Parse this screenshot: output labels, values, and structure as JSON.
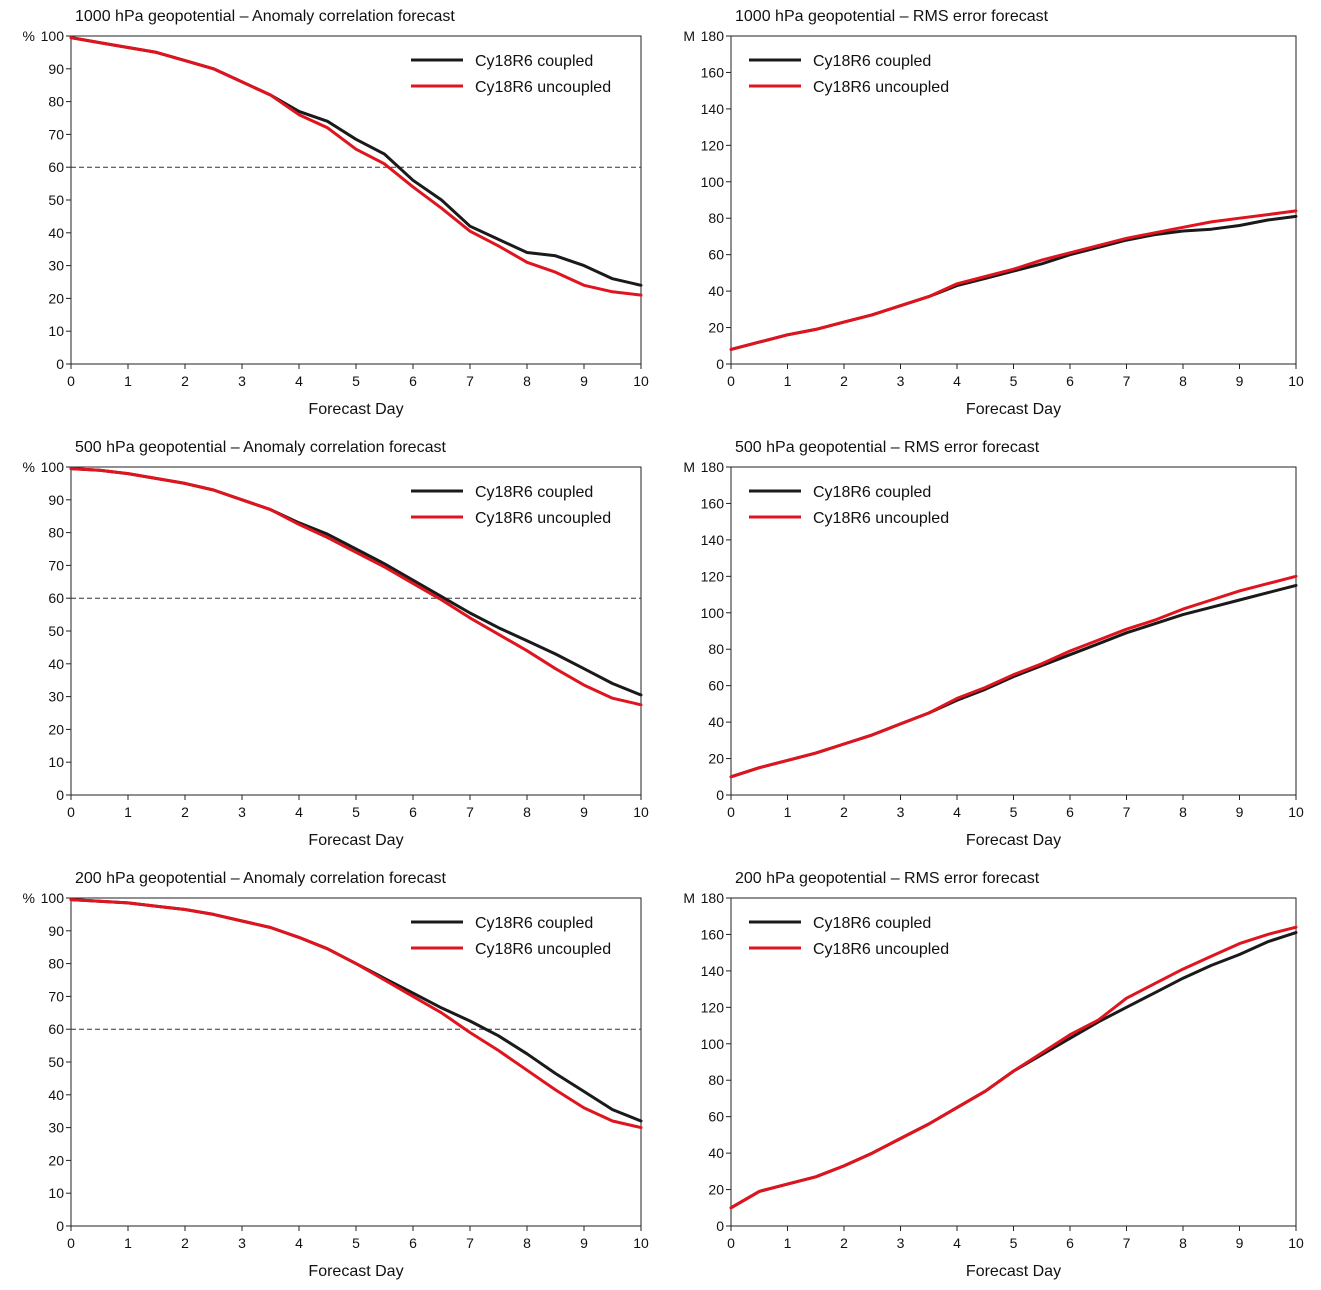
{
  "chart_data": [
    {
      "type": "line",
      "title": "1000 hPa geopotential – Anomaly correlation forecast",
      "xlabel": "Forecast Day",
      "yunit": "%",
      "xlim": [
        0,
        10
      ],
      "ylim": [
        0,
        100
      ],
      "xticks": [
        0,
        1,
        2,
        3,
        4,
        5,
        6,
        7,
        8,
        9,
        10
      ],
      "yticks": [
        0,
        10,
        20,
        30,
        40,
        50,
        60,
        70,
        80,
        90,
        100
      ],
      "reference_line": 60,
      "legend": "top-right",
      "x": [
        0,
        0.5,
        1,
        1.5,
        2,
        2.5,
        3,
        3.5,
        4,
        4.5,
        5,
        5.5,
        6,
        6.5,
        7,
        7.5,
        8,
        8.5,
        9,
        9.5,
        10
      ],
      "series": [
        {
          "name": "Cy18R6 coupled",
          "color": "#1a1a1a",
          "values": [
            99.5,
            98,
            96.5,
            95,
            92.5,
            90,
            86,
            82,
            77,
            74,
            68.5,
            64,
            56,
            50,
            42,
            38,
            34,
            33,
            30,
            26,
            24
          ]
        },
        {
          "name": "Cy18R6 uncoupled",
          "color": "#e0141e",
          "values": [
            99.5,
            98,
            96.5,
            95,
            92.5,
            90,
            86,
            82,
            76,
            72,
            65.5,
            61,
            54,
            47.5,
            40.5,
            36,
            31,
            28,
            24,
            22,
            21
          ]
        }
      ]
    },
    {
      "type": "line",
      "title": "1000 hPa geopotential – RMS error forecast",
      "xlabel": "Forecast Day",
      "yunit": "M",
      "xlim": [
        0,
        10
      ],
      "ylim": [
        0,
        180
      ],
      "xticks": [
        0,
        1,
        2,
        3,
        4,
        5,
        6,
        7,
        8,
        9,
        10
      ],
      "yticks": [
        0,
        20,
        40,
        60,
        80,
        100,
        120,
        140,
        160,
        180
      ],
      "legend": "top-left",
      "x": [
        0,
        0.5,
        1,
        1.5,
        2,
        2.5,
        3,
        3.5,
        4,
        4.5,
        5,
        5.5,
        6,
        6.5,
        7,
        7.5,
        8,
        8.5,
        9,
        9.5,
        10
      ],
      "series": [
        {
          "name": "Cy18R6 coupled",
          "color": "#1a1a1a",
          "values": [
            8,
            12,
            16,
            19,
            23,
            27,
            32,
            37,
            43,
            47,
            51,
            55,
            60,
            64,
            68,
            71,
            73,
            74,
            76,
            79,
            81
          ]
        },
        {
          "name": "Cy18R6 uncoupled",
          "color": "#e0141e",
          "values": [
            8,
            12,
            16,
            19,
            23,
            27,
            32,
            37,
            44,
            48,
            52,
            57,
            61,
            65,
            69,
            72,
            75,
            78,
            80,
            82,
            84
          ]
        }
      ]
    },
    {
      "type": "line",
      "title": "500 hPa geopotential – Anomaly correlation forecast",
      "xlabel": "Forecast Day",
      "yunit": "%",
      "xlim": [
        0,
        10
      ],
      "ylim": [
        0,
        100
      ],
      "xticks": [
        0,
        1,
        2,
        3,
        4,
        5,
        6,
        7,
        8,
        9,
        10
      ],
      "yticks": [
        0,
        10,
        20,
        30,
        40,
        50,
        60,
        70,
        80,
        90,
        100
      ],
      "reference_line": 60,
      "legend": "top-right",
      "x": [
        0,
        0.5,
        1,
        1.5,
        2,
        2.5,
        3,
        3.5,
        4,
        4.5,
        5,
        5.5,
        6,
        6.5,
        7,
        7.5,
        8,
        8.5,
        9,
        9.5,
        10
      ],
      "series": [
        {
          "name": "Cy18R6 coupled",
          "color": "#1a1a1a",
          "values": [
            99.5,
            99,
            98,
            96.5,
            95,
            93,
            90,
            87,
            83,
            79.5,
            75,
            70.5,
            65.5,
            60.5,
            55.5,
            51,
            47,
            43,
            38.5,
            34,
            30.5
          ]
        },
        {
          "name": "Cy18R6 uncoupled",
          "color": "#e0141e",
          "values": [
            99.5,
            99,
            98,
            96.5,
            95,
            93,
            90,
            87,
            82.5,
            78.5,
            74,
            69.5,
            64.5,
            59.5,
            54,
            49,
            44,
            38.5,
            33.5,
            29.5,
            27.5
          ]
        }
      ]
    },
    {
      "type": "line",
      "title": "500 hPa geopotential – RMS error forecast",
      "xlabel": "Forecast Day",
      "yunit": "M",
      "xlim": [
        0,
        10
      ],
      "ylim": [
        0,
        180
      ],
      "xticks": [
        0,
        1,
        2,
        3,
        4,
        5,
        6,
        7,
        8,
        9,
        10
      ],
      "yticks": [
        0,
        20,
        40,
        60,
        80,
        100,
        120,
        140,
        160,
        180
      ],
      "legend": "top-left",
      "x": [
        0,
        0.5,
        1,
        1.5,
        2,
        2.5,
        3,
        3.5,
        4,
        4.5,
        5,
        5.5,
        6,
        6.5,
        7,
        7.5,
        8,
        8.5,
        9,
        9.5,
        10
      ],
      "series": [
        {
          "name": "Cy18R6 coupled",
          "color": "#1a1a1a",
          "values": [
            10,
            15,
            19,
            23,
            28,
            33,
            39,
            45,
            52,
            58,
            65,
            71,
            77,
            83,
            89,
            94,
            99,
            103,
            107,
            111,
            115
          ]
        },
        {
          "name": "Cy18R6 uncoupled",
          "color": "#e0141e",
          "values": [
            10,
            15,
            19,
            23,
            28,
            33,
            39,
            45,
            53,
            59,
            66,
            72,
            79,
            85,
            91,
            96,
            102,
            107,
            112,
            116,
            120
          ]
        }
      ]
    },
    {
      "type": "line",
      "title": "200 hPa geopotential – Anomaly correlation forecast",
      "xlabel": "Forecast Day",
      "yunit": "%",
      "xlim": [
        0,
        10
      ],
      "ylim": [
        0,
        100
      ],
      "xticks": [
        0,
        1,
        2,
        3,
        4,
        5,
        6,
        7,
        8,
        9,
        10
      ],
      "yticks": [
        0,
        10,
        20,
        30,
        40,
        50,
        60,
        70,
        80,
        90,
        100
      ],
      "reference_line": 60,
      "legend": "top-right",
      "x": [
        0,
        0.5,
        1,
        1.5,
        2,
        2.5,
        3,
        3.5,
        4,
        4.5,
        5,
        5.5,
        6,
        6.5,
        7,
        7.5,
        8,
        8.5,
        9,
        9.5,
        10
      ],
      "series": [
        {
          "name": "Cy18R6 coupled",
          "color": "#1a1a1a",
          "values": [
            99.5,
            99,
            98.5,
            97.5,
            96.5,
            95,
            93,
            91,
            88,
            84.5,
            80,
            75.5,
            71,
            66.5,
            62.5,
            58,
            52.5,
            46.5,
            41,
            35.5,
            32
          ]
        },
        {
          "name": "Cy18R6 uncoupled",
          "color": "#e0141e",
          "values": [
            99.5,
            99,
            98.5,
            97.5,
            96.5,
            95,
            93,
            91,
            88,
            84.5,
            80,
            75,
            70,
            65,
            59,
            53.5,
            47.5,
            41.5,
            36,
            32,
            30
          ]
        }
      ]
    },
    {
      "type": "line",
      "title": "200 hPa geopotential – RMS error forecast",
      "xlabel": "Forecast Day",
      "yunit": "M",
      "xlim": [
        0,
        10
      ],
      "ylim": [
        0,
        180
      ],
      "xticks": [
        0,
        1,
        2,
        3,
        4,
        5,
        6,
        7,
        8,
        9,
        10
      ],
      "yticks": [
        0,
        20,
        40,
        60,
        80,
        100,
        120,
        140,
        160,
        180
      ],
      "legend": "top-left",
      "x": [
        0,
        0.5,
        1,
        1.5,
        2,
        2.5,
        3,
        3.5,
        4,
        4.5,
        5,
        5.5,
        6,
        6.5,
        7,
        7.5,
        8,
        8.5,
        9,
        9.5,
        10
      ],
      "series": [
        {
          "name": "Cy18R6 coupled",
          "color": "#1a1a1a",
          "values": [
            10,
            19,
            23,
            27,
            33,
            40,
            48,
            56,
            65,
            74,
            85,
            94,
            103,
            112,
            120,
            128,
            136,
            143,
            149,
            156,
            161
          ]
        },
        {
          "name": "Cy18R6 uncoupled",
          "color": "#e0141e",
          "values": [
            10,
            19,
            23,
            27,
            33,
            40,
            48,
            56,
            65,
            74,
            85,
            95,
            105,
            113,
            125,
            133,
            141,
            148,
            155,
            160,
            164
          ]
        }
      ]
    }
  ]
}
